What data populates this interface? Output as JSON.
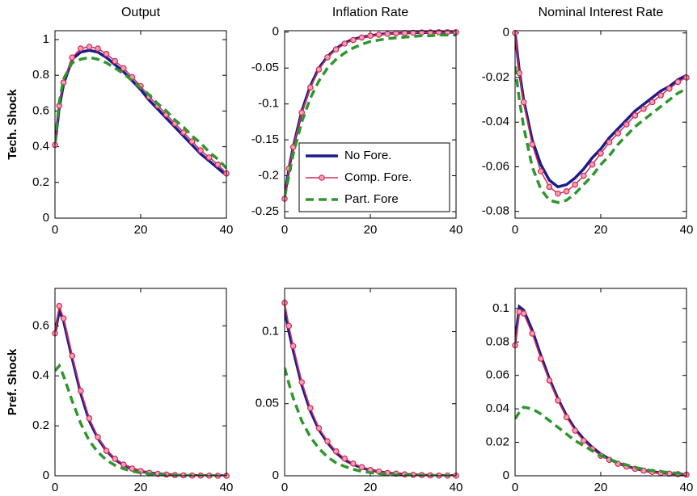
{
  "chart_data": [
    {
      "type": "line",
      "title": "Output",
      "ylabel": "Tech. Shock",
      "x": [
        0,
        1,
        2,
        4,
        6,
        8,
        10,
        12,
        14,
        16,
        18,
        20,
        22,
        24,
        26,
        28,
        30,
        32,
        34,
        36,
        38,
        40
      ],
      "xlim": [
        0,
        40
      ],
      "xticks": [
        0,
        20,
        40
      ],
      "ylim": [
        0,
        1.05
      ],
      "yticks": [
        0,
        0.2,
        0.4,
        0.6,
        0.8,
        1
      ],
      "series": [
        {
          "color": "#1c1c8a",
          "linestyle": "solid",
          "values": [
            0.41,
            0.62,
            0.75,
            0.89,
            0.93,
            0.94,
            0.93,
            0.9,
            0.86,
            0.82,
            0.77,
            0.72,
            0.66,
            0.61,
            0.56,
            0.51,
            0.46,
            0.41,
            0.36,
            0.32,
            0.28,
            0.24
          ]
        },
        {
          "color": "#d42a55",
          "linestyle": "solid",
          "marker": "circle",
          "values": [
            0.41,
            0.63,
            0.76,
            0.9,
            0.95,
            0.96,
            0.95,
            0.92,
            0.88,
            0.84,
            0.79,
            0.74,
            0.68,
            0.63,
            0.58,
            0.53,
            0.48,
            0.43,
            0.38,
            0.34,
            0.3,
            0.25
          ]
        },
        {
          "color": "#2e962e",
          "linestyle": "dashed",
          "values": [
            0.42,
            0.65,
            0.78,
            0.87,
            0.89,
            0.9,
            0.89,
            0.87,
            0.84,
            0.81,
            0.77,
            0.73,
            0.69,
            0.64,
            0.6,
            0.55,
            0.51,
            0.46,
            0.42,
            0.37,
            0.33,
            0.28
          ]
        }
      ]
    },
    {
      "type": "line",
      "title": "Inflation Rate",
      "legend": "lower right",
      "x": [
        0,
        1,
        2,
        4,
        6,
        8,
        10,
        12,
        14,
        16,
        18,
        20,
        22,
        24,
        26,
        28,
        30,
        32,
        34,
        36,
        38,
        40
      ],
      "xlim": [
        0,
        40
      ],
      "xticks": [
        0,
        20,
        40
      ],
      "ylim": [
        -0.259,
        0.002
      ],
      "yticks": [
        -0.25,
        -0.2,
        -0.15,
        -0.1,
        -0.05,
        0
      ],
      "series": [
        {
          "name": "No Fore.",
          "color": "#1c1c8a",
          "linestyle": "solid",
          "values": [
            -0.23,
            -0.19,
            -0.16,
            -0.11,
            -0.075,
            -0.05,
            -0.034,
            -0.023,
            -0.015,
            -0.01,
            -0.007,
            -0.005,
            -0.003,
            -0.002,
            -0.0015,
            -0.001,
            -0.0007,
            -0.0005,
            -0.0003,
            -0.0002,
            -0.0001,
            0
          ]
        },
        {
          "name": "Comp. Fore.",
          "color": "#d42a55",
          "linestyle": "solid",
          "marker": "circle",
          "values": [
            -0.232,
            -0.19,
            -0.16,
            -0.112,
            -0.077,
            -0.052,
            -0.035,
            -0.024,
            -0.016,
            -0.011,
            -0.0075,
            -0.005,
            -0.0035,
            -0.0025,
            -0.0017,
            -0.0012,
            -0.0008,
            -0.0005,
            -0.0003,
            -0.0002,
            -0.0001,
            0
          ]
        },
        {
          "name": "Part. Fore",
          "color": "#2e962e",
          "linestyle": "dashed",
          "values": [
            -0.23,
            -0.2,
            -0.17,
            -0.125,
            -0.092,
            -0.068,
            -0.05,
            -0.038,
            -0.029,
            -0.022,
            -0.017,
            -0.013,
            -0.011,
            -0.009,
            -0.008,
            -0.007,
            -0.006,
            -0.005,
            -0.005,
            -0.004,
            -0.004,
            -0.004
          ]
        }
      ]
    },
    {
      "type": "line",
      "title": "Nominal Interest Rate",
      "x": [
        0,
        1,
        2,
        4,
        6,
        8,
        10,
        12,
        14,
        16,
        18,
        20,
        22,
        24,
        26,
        28,
        30,
        32,
        34,
        36,
        38,
        40
      ],
      "xlim": [
        0,
        40
      ],
      "xticks": [
        0,
        20,
        40
      ],
      "ylim": [
        -0.083,
        0.001
      ],
      "yticks": [
        -0.08,
        -0.06,
        -0.04,
        -0.02,
        0
      ],
      "series": [
        {
          "color": "#1c1c8a",
          "linestyle": "solid",
          "values": [
            0,
            -0.017,
            -0.03,
            -0.048,
            -0.059,
            -0.066,
            -0.069,
            -0.068,
            -0.065,
            -0.061,
            -0.056,
            -0.052,
            -0.047,
            -0.043,
            -0.039,
            -0.035,
            -0.032,
            -0.029,
            -0.026,
            -0.024,
            -0.021,
            -0.019
          ]
        },
        {
          "color": "#d42a55",
          "linestyle": "solid",
          "marker": "circle",
          "values": [
            0,
            -0.018,
            -0.031,
            -0.05,
            -0.062,
            -0.069,
            -0.072,
            -0.071,
            -0.068,
            -0.064,
            -0.059,
            -0.054,
            -0.049,
            -0.045,
            -0.041,
            -0.037,
            -0.034,
            -0.031,
            -0.028,
            -0.025,
            -0.022,
            -0.02
          ]
        },
        {
          "color": "#2e962e",
          "linestyle": "dashed",
          "values": [
            -0.015,
            -0.03,
            -0.042,
            -0.06,
            -0.07,
            -0.075,
            -0.076,
            -0.075,
            -0.072,
            -0.068,
            -0.064,
            -0.059,
            -0.055,
            -0.05,
            -0.046,
            -0.042,
            -0.039,
            -0.036,
            -0.033,
            -0.03,
            -0.027,
            -0.025
          ]
        }
      ]
    },
    {
      "type": "line",
      "ylabel": "Pref. Shock",
      "x": [
        0,
        1,
        2,
        4,
        6,
        8,
        10,
        12,
        14,
        16,
        18,
        20,
        22,
        24,
        26,
        28,
        30,
        32,
        34,
        36,
        38,
        40
      ],
      "xlim": [
        0,
        40
      ],
      "xticks": [
        0,
        20,
        40
      ],
      "ylim": [
        0,
        0.75
      ],
      "yticks": [
        0,
        0.2,
        0.4,
        0.6
      ],
      "series": [
        {
          "color": "#1c1c8a",
          "linestyle": "solid",
          "values": [
            0.57,
            0.66,
            0.62,
            0.47,
            0.33,
            0.22,
            0.15,
            0.1,
            0.065,
            0.043,
            0.028,
            0.018,
            0.012,
            0.008,
            0.005,
            0.003,
            0.002,
            0.001,
            0.001,
            0.0005,
            0.0003,
            0.0002
          ]
        },
        {
          "color": "#d42a55",
          "linestyle": "solid",
          "marker": "circle",
          "values": [
            0.57,
            0.68,
            0.63,
            0.48,
            0.34,
            0.23,
            0.155,
            0.1,
            0.068,
            0.045,
            0.029,
            0.019,
            0.012,
            0.008,
            0.005,
            0.003,
            0.002,
            0.001,
            0.001,
            0.0005,
            0.0003,
            0.0002
          ]
        },
        {
          "color": "#2e962e",
          "linestyle": "dashed",
          "values": [
            0.42,
            0.44,
            0.4,
            0.3,
            0.21,
            0.14,
            0.095,
            0.063,
            0.042,
            0.028,
            0.018,
            0.012,
            0.008,
            0.005,
            0.003,
            0.002,
            0.001,
            0.001,
            0.0005,
            0.0003,
            0.0002,
            0.0001
          ]
        }
      ]
    },
    {
      "type": "line",
      "x": [
        0,
        1,
        2,
        4,
        6,
        8,
        10,
        12,
        14,
        16,
        18,
        20,
        22,
        24,
        26,
        28,
        30,
        32,
        34,
        36,
        38,
        40
      ],
      "xlim": [
        0,
        40
      ],
      "xticks": [
        0,
        20,
        40
      ],
      "ylim": [
        0,
        0.13
      ],
      "yticks": [
        0,
        0.05,
        0.1
      ],
      "series": [
        {
          "color": "#1c1c8a",
          "linestyle": "solid",
          "values": [
            0.115,
            0.1,
            0.087,
            0.063,
            0.045,
            0.032,
            0.023,
            0.016,
            0.011,
            0.008,
            0.0055,
            0.004,
            0.0028,
            0.002,
            0.0014,
            0.001,
            0.0007,
            0.0005,
            0.0003,
            0.0002,
            0.0002,
            0.0001
          ]
        },
        {
          "color": "#d42a55",
          "linestyle": "solid",
          "marker": "circle",
          "values": [
            0.12,
            0.104,
            0.09,
            0.065,
            0.047,
            0.033,
            0.024,
            0.017,
            0.012,
            0.0085,
            0.006,
            0.004,
            0.003,
            0.002,
            0.0015,
            0.001,
            0.0007,
            0.0005,
            0.0003,
            0.0002,
            0.0002,
            0.0001
          ]
        },
        {
          "color": "#2e962e",
          "linestyle": "dashed",
          "values": [
            0.075,
            0.064,
            0.054,
            0.038,
            0.027,
            0.019,
            0.013,
            0.009,
            0.0065,
            0.0045,
            0.003,
            0.0022,
            0.0015,
            0.001,
            0.0007,
            0.0005,
            0.0004,
            0.0003,
            0.0002,
            0.0001,
            0.0001,
            0.0001
          ]
        }
      ]
    },
    {
      "type": "line",
      "x": [
        0,
        1,
        2,
        4,
        6,
        8,
        10,
        12,
        14,
        16,
        18,
        20,
        22,
        24,
        26,
        28,
        30,
        32,
        34,
        36,
        38,
        40
      ],
      "xlim": [
        0,
        40
      ],
      "xticks": [
        0,
        20,
        40
      ],
      "ylim": [
        0,
        0.112
      ],
      "yticks": [
        0,
        0.02,
        0.04,
        0.06,
        0.08,
        0.1
      ],
      "series": [
        {
          "color": "#1c1c8a",
          "linestyle": "solid",
          "values": [
            0.08,
            0.101,
            0.099,
            0.087,
            0.072,
            0.058,
            0.046,
            0.036,
            0.028,
            0.022,
            0.017,
            0.013,
            0.01,
            0.0075,
            0.0057,
            0.0043,
            0.0032,
            0.0024,
            0.0018,
            0.0013,
            0.001,
            0.0007
          ]
        },
        {
          "color": "#d42a55",
          "linestyle": "solid",
          "marker": "circle",
          "values": [
            0.078,
            0.098,
            0.097,
            0.085,
            0.07,
            0.057,
            0.045,
            0.035,
            0.027,
            0.021,
            0.016,
            0.012,
            0.0095,
            0.0072,
            0.0055,
            0.0042,
            0.0031,
            0.0023,
            0.0017,
            0.0013,
            0.001,
            0.0007
          ]
        },
        {
          "color": "#2e962e",
          "linestyle": "dashed",
          "values": [
            0.034,
            0.038,
            0.041,
            0.04,
            0.037,
            0.033,
            0.029,
            0.025,
            0.021,
            0.018,
            0.015,
            0.012,
            0.01,
            0.008,
            0.0065,
            0.005,
            0.004,
            0.003,
            0.0025,
            0.002,
            0.0015,
            0.001
          ]
        }
      ]
    }
  ]
}
